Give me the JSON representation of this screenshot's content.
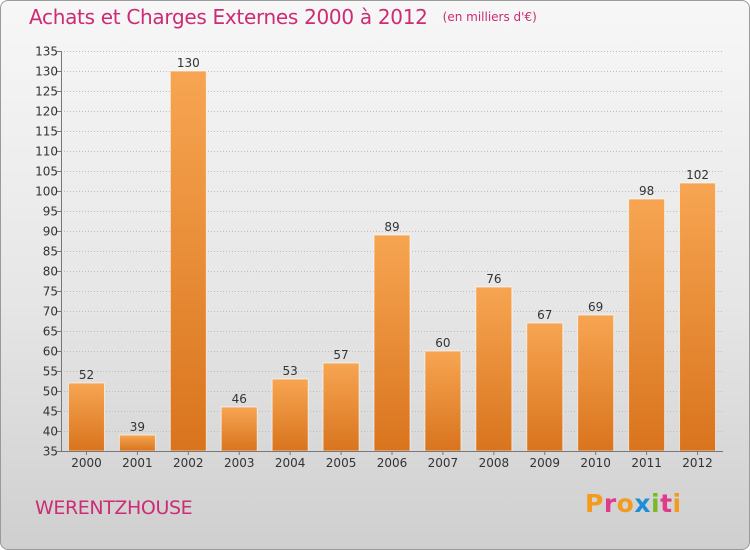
{
  "header": {
    "title": "Achats et Charges Externes 2000 à 2012",
    "unit": "(en milliers d'€)"
  },
  "footer": {
    "town": "WERENTZHOUSE",
    "logo_letters": [
      "P",
      "r",
      "o",
      "x",
      "i",
      "t",
      "i"
    ],
    "logo_colors": [
      "#f39a1f",
      "#e23a8a",
      "#f39a1f",
      "#1e8fd6",
      "#7ab929",
      "#e23a8a",
      "#f39a1f"
    ]
  },
  "chart_data": {
    "type": "bar",
    "title": "Achats et Charges Externes 2000 à 2012",
    "subtitle": "(en milliers d'€)",
    "xlabel": "",
    "ylabel": "",
    "categories": [
      "2000",
      "2001",
      "2002",
      "2003",
      "2004",
      "2005",
      "2006",
      "2007",
      "2008",
      "2009",
      "2010",
      "2011",
      "2012"
    ],
    "values": [
      52,
      39,
      130,
      46,
      53,
      57,
      89,
      60,
      76,
      67,
      69,
      98,
      102
    ],
    "ylim": [
      35,
      135
    ],
    "ytick_step": 5,
    "grid": true,
    "legend": "none",
    "bar_color_light": "#f7a552",
    "bar_color_dark": "#d9741d",
    "text_color": "#333333"
  }
}
